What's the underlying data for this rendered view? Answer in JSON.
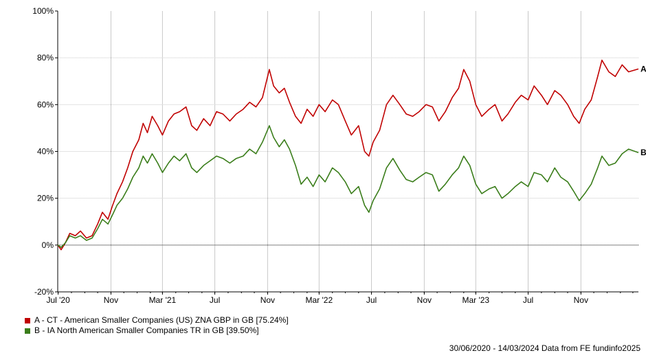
{
  "chart_data": {
    "type": "line",
    "x_tick_labels": [
      "Jul '20",
      "Nov",
      "Mar '21",
      "Jul",
      "Nov",
      "Mar '22",
      "Jul",
      "Nov",
      "Mar '23",
      "Jul",
      "Nov"
    ],
    "y_tick_labels": [
      "100%",
      "80%",
      "60%",
      "40%",
      "20%",
      "0%",
      "-20%"
    ],
    "ylim": [
      -20,
      100
    ],
    "y_unit": "%",
    "grid": true,
    "legend_position": "bottom-left",
    "series": [
      {
        "name": "A - CT - American Smaller Companies (US) ZNA GBP in GB [75.24%]",
        "end_label": "A",
        "color": "#c00000",
        "points": [
          [
            "2020-06-30",
            0
          ],
          [
            "2020-07-08",
            -2
          ],
          [
            "2020-07-18",
            1
          ],
          [
            "2020-07-28",
            5
          ],
          [
            "2020-08-10",
            4
          ],
          [
            "2020-08-22",
            6
          ],
          [
            "2020-09-05",
            3
          ],
          [
            "2020-09-18",
            4
          ],
          [
            "2020-10-01",
            9
          ],
          [
            "2020-10-12",
            14
          ],
          [
            "2020-10-25",
            11
          ],
          [
            "2020-11-05",
            17
          ],
          [
            "2020-11-15",
            22
          ],
          [
            "2020-11-28",
            27
          ],
          [
            "2020-12-10",
            33
          ],
          [
            "2020-12-22",
            40
          ],
          [
            "2021-01-05",
            45
          ],
          [
            "2021-01-15",
            52
          ],
          [
            "2021-01-25",
            48
          ],
          [
            "2021-02-05",
            55
          ],
          [
            "2021-02-18",
            51
          ],
          [
            "2021-03-01",
            47
          ],
          [
            "2021-03-15",
            53
          ],
          [
            "2021-03-28",
            56
          ],
          [
            "2021-04-10",
            57
          ],
          [
            "2021-04-25",
            59
          ],
          [
            "2021-05-08",
            51
          ],
          [
            "2021-05-20",
            49
          ],
          [
            "2021-06-05",
            54
          ],
          [
            "2021-06-20",
            51
          ],
          [
            "2021-07-05",
            57
          ],
          [
            "2021-07-20",
            56
          ],
          [
            "2021-08-05",
            53
          ],
          [
            "2021-08-20",
            56
          ],
          [
            "2021-09-05",
            58
          ],
          [
            "2021-09-20",
            61
          ],
          [
            "2021-10-05",
            59
          ],
          [
            "2021-10-20",
            63
          ],
          [
            "2021-11-05",
            75
          ],
          [
            "2021-11-15",
            68
          ],
          [
            "2021-11-28",
            65
          ],
          [
            "2021-12-10",
            67
          ],
          [
            "2021-12-22",
            61
          ],
          [
            "2022-01-05",
            55
          ],
          [
            "2022-01-18",
            52
          ],
          [
            "2022-02-01",
            58
          ],
          [
            "2022-02-15",
            55
          ],
          [
            "2022-03-01",
            60
          ],
          [
            "2022-03-15",
            57
          ],
          [
            "2022-04-01",
            62
          ],
          [
            "2022-04-15",
            60
          ],
          [
            "2022-05-01",
            53
          ],
          [
            "2022-05-15",
            47
          ],
          [
            "2022-06-01",
            51
          ],
          [
            "2022-06-15",
            40
          ],
          [
            "2022-06-25",
            38
          ],
          [
            "2022-07-05",
            44
          ],
          [
            "2022-07-20",
            49
          ],
          [
            "2022-08-05",
            60
          ],
          [
            "2022-08-20",
            64
          ],
          [
            "2022-09-05",
            60
          ],
          [
            "2022-09-20",
            56
          ],
          [
            "2022-10-05",
            55
          ],
          [
            "2022-10-20",
            57
          ],
          [
            "2022-11-05",
            60
          ],
          [
            "2022-11-20",
            59
          ],
          [
            "2022-12-05",
            53
          ],
          [
            "2022-12-20",
            57
          ],
          [
            "2023-01-05",
            63
          ],
          [
            "2023-01-20",
            67
          ],
          [
            "2023-02-01",
            75
          ],
          [
            "2023-02-15",
            70
          ],
          [
            "2023-03-01",
            60
          ],
          [
            "2023-03-15",
            55
          ],
          [
            "2023-04-01",
            58
          ],
          [
            "2023-04-15",
            60
          ],
          [
            "2023-05-01",
            53
          ],
          [
            "2023-05-15",
            56
          ],
          [
            "2023-06-01",
            61
          ],
          [
            "2023-06-15",
            64
          ],
          [
            "2023-07-01",
            62
          ],
          [
            "2023-07-15",
            68
          ],
          [
            "2023-08-01",
            64
          ],
          [
            "2023-08-15",
            60
          ],
          [
            "2023-09-01",
            66
          ],
          [
            "2023-09-15",
            64
          ],
          [
            "2023-10-01",
            60
          ],
          [
            "2023-10-15",
            55
          ],
          [
            "2023-10-28",
            52
          ],
          [
            "2023-11-10",
            58
          ],
          [
            "2023-11-25",
            62
          ],
          [
            "2023-12-10",
            72
          ],
          [
            "2023-12-20",
            79
          ],
          [
            "2024-01-05",
            74
          ],
          [
            "2024-01-20",
            72
          ],
          [
            "2024-02-05",
            77
          ],
          [
            "2024-02-20",
            74
          ],
          [
            "2024-03-14",
            75.24
          ]
        ]
      },
      {
        "name": "B - IA North American Smaller Companies TR in GB [39.50%]",
        "end_label": "B",
        "color": "#3a7d1a",
        "points": [
          [
            "2020-06-30",
            0
          ],
          [
            "2020-07-08",
            -1
          ],
          [
            "2020-07-18",
            1
          ],
          [
            "2020-07-28",
            4
          ],
          [
            "2020-08-10",
            3
          ],
          [
            "2020-08-22",
            4
          ],
          [
            "2020-09-05",
            2
          ],
          [
            "2020-09-18",
            3
          ],
          [
            "2020-10-01",
            7
          ],
          [
            "2020-10-12",
            11
          ],
          [
            "2020-10-25",
            9
          ],
          [
            "2020-11-05",
            13
          ],
          [
            "2020-11-15",
            17
          ],
          [
            "2020-11-28",
            20
          ],
          [
            "2020-12-10",
            24
          ],
          [
            "2020-12-22",
            29
          ],
          [
            "2021-01-05",
            33
          ],
          [
            "2021-01-15",
            38
          ],
          [
            "2021-01-25",
            35
          ],
          [
            "2021-02-05",
            39
          ],
          [
            "2021-02-18",
            35
          ],
          [
            "2021-03-01",
            31
          ],
          [
            "2021-03-15",
            35
          ],
          [
            "2021-03-28",
            38
          ],
          [
            "2021-04-10",
            36
          ],
          [
            "2021-04-25",
            39
          ],
          [
            "2021-05-08",
            33
          ],
          [
            "2021-05-20",
            31
          ],
          [
            "2021-06-05",
            34
          ],
          [
            "2021-06-20",
            36
          ],
          [
            "2021-07-05",
            38
          ],
          [
            "2021-07-20",
            37
          ],
          [
            "2021-08-05",
            35
          ],
          [
            "2021-08-20",
            37
          ],
          [
            "2021-09-05",
            38
          ],
          [
            "2021-09-20",
            41
          ],
          [
            "2021-10-05",
            39
          ],
          [
            "2021-10-20",
            44
          ],
          [
            "2021-11-05",
            51
          ],
          [
            "2021-11-15",
            46
          ],
          [
            "2021-11-28",
            42
          ],
          [
            "2021-12-10",
            45
          ],
          [
            "2021-12-22",
            41
          ],
          [
            "2022-01-05",
            34
          ],
          [
            "2022-01-18",
            26
          ],
          [
            "2022-02-01",
            29
          ],
          [
            "2022-02-15",
            25
          ],
          [
            "2022-03-01",
            30
          ],
          [
            "2022-03-15",
            27
          ],
          [
            "2022-04-01",
            33
          ],
          [
            "2022-04-15",
            31
          ],
          [
            "2022-05-01",
            27
          ],
          [
            "2022-05-15",
            22
          ],
          [
            "2022-06-01",
            25
          ],
          [
            "2022-06-15",
            17
          ],
          [
            "2022-06-25",
            14
          ],
          [
            "2022-07-05",
            19
          ],
          [
            "2022-07-20",
            24
          ],
          [
            "2022-08-05",
            33
          ],
          [
            "2022-08-20",
            37
          ],
          [
            "2022-09-05",
            32
          ],
          [
            "2022-09-20",
            28
          ],
          [
            "2022-10-05",
            27
          ],
          [
            "2022-10-20",
            29
          ],
          [
            "2022-11-05",
            31
          ],
          [
            "2022-11-20",
            30
          ],
          [
            "2022-12-05",
            23
          ],
          [
            "2022-12-20",
            26
          ],
          [
            "2023-01-05",
            30
          ],
          [
            "2023-01-20",
            33
          ],
          [
            "2023-02-01",
            38
          ],
          [
            "2023-02-15",
            34
          ],
          [
            "2023-03-01",
            26
          ],
          [
            "2023-03-15",
            22
          ],
          [
            "2023-04-01",
            24
          ],
          [
            "2023-04-15",
            25
          ],
          [
            "2023-05-01",
            20
          ],
          [
            "2023-05-15",
            22
          ],
          [
            "2023-06-01",
            25
          ],
          [
            "2023-06-15",
            27
          ],
          [
            "2023-07-01",
            25
          ],
          [
            "2023-07-15",
            31
          ],
          [
            "2023-08-01",
            30
          ],
          [
            "2023-08-15",
            27
          ],
          [
            "2023-09-01",
            33
          ],
          [
            "2023-09-15",
            29
          ],
          [
            "2023-10-01",
            27
          ],
          [
            "2023-10-15",
            23
          ],
          [
            "2023-10-28",
            19
          ],
          [
            "2023-11-10",
            22
          ],
          [
            "2023-11-25",
            26
          ],
          [
            "2023-12-10",
            33
          ],
          [
            "2023-12-20",
            38
          ],
          [
            "2024-01-05",
            34
          ],
          [
            "2024-01-20",
            35
          ],
          [
            "2024-02-05",
            39
          ],
          [
            "2024-02-20",
            41
          ],
          [
            "2024-03-14",
            39.5
          ]
        ]
      }
    ]
  },
  "legend": [
    {
      "label": "A - CT - American Smaller Companies (US) ZNA GBP in GB [75.24%]",
      "color": "#c00000"
    },
    {
      "label": "B - IA North American Smaller Companies TR in GB [39.50%]",
      "color": "#3a7d1a"
    }
  ],
  "footer": "30/06/2020 - 14/03/2024 Data from FE fundinfo2025"
}
